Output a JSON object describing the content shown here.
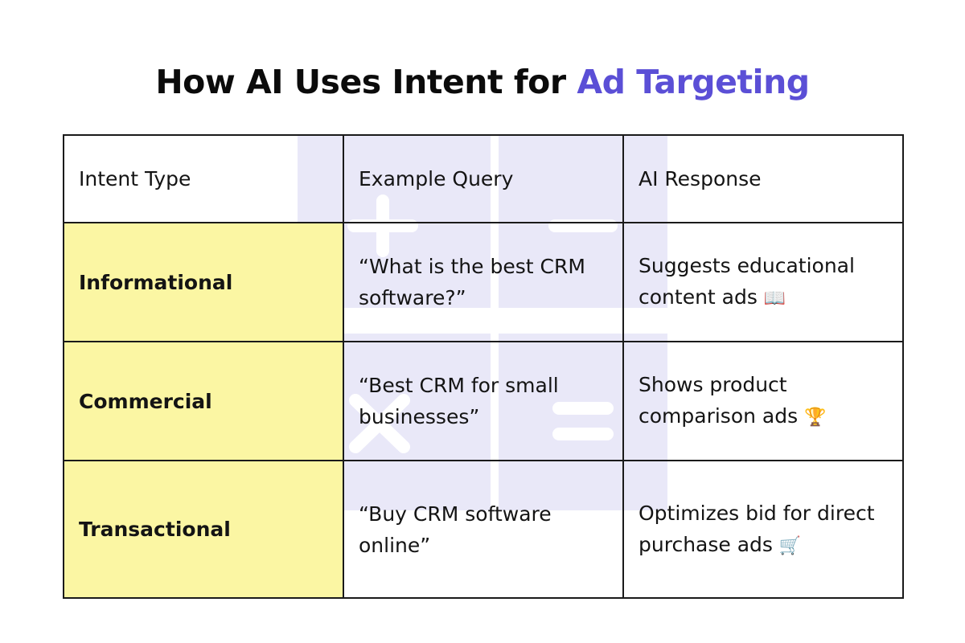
{
  "title": {
    "main": "How AI Uses Intent for",
    "accent": "Ad Targeting"
  },
  "colors": {
    "accent": "#5b4fd6",
    "highlight": "#fbf6a3",
    "decor": "#e9e8f8"
  },
  "table": {
    "headers": [
      "Intent Type",
      "Example Query",
      "AI Response"
    ],
    "rows": [
      {
        "type": "Informational",
        "query": "“What is the best CRM software?”",
        "response": "Suggests educational content ads",
        "emoji": "📖"
      },
      {
        "type": "Commercial",
        "query": "“Best CRM for small businesses”",
        "response": "Shows product comparison ads",
        "emoji": "🏆"
      },
      {
        "type": "Transactional",
        "query": "“Buy CRM software online”",
        "response": "Optimizes bid for direct purchase ads",
        "emoji": "🛒"
      }
    ]
  }
}
